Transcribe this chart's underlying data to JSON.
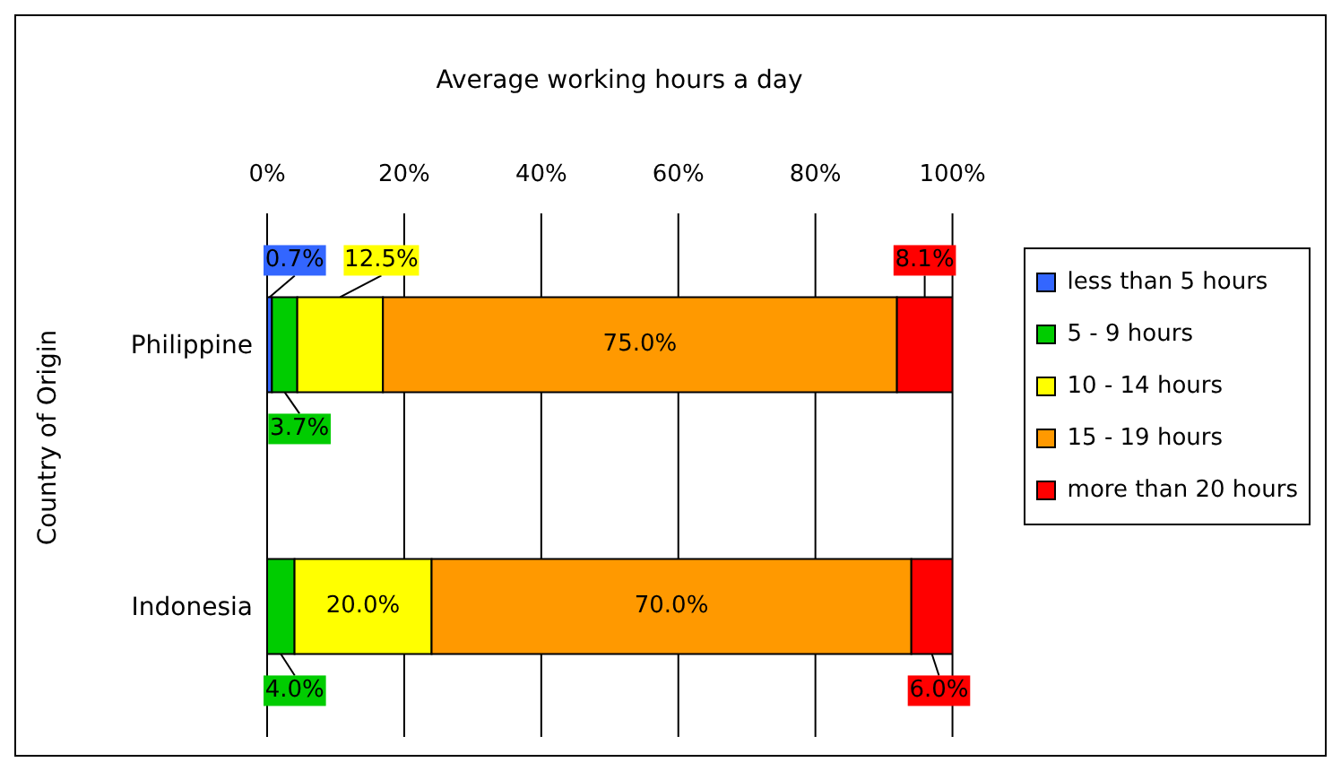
{
  "chart_data": {
    "type": "bar",
    "orientation": "horizontal",
    "stacked": true,
    "xlabel": "Average working hours a day",
    "ylabel": "Country of Origin",
    "categories": [
      "Philippine",
      "Indonesia"
    ],
    "series": [
      {
        "name": "less than 5 hours",
        "color": "#3366ff",
        "values": [
          0.7,
          null
        ],
        "value_labels": [
          "0.7%",
          null
        ]
      },
      {
        "name": "5 - 9 hours",
        "color": "#00cc00",
        "values": [
          3.7,
          4.0
        ],
        "value_labels": [
          "3.7%",
          "4.0%"
        ]
      },
      {
        "name": "10 - 14 hours",
        "color": "#ffff00",
        "values": [
          12.5,
          20.0
        ],
        "value_labels": [
          "12.5%",
          "20.0%"
        ]
      },
      {
        "name": "15 - 19 hours",
        "color": "#ff9900",
        "values": [
          75.0,
          70.0
        ],
        "value_labels": [
          "75.0%",
          "70.0%"
        ]
      },
      {
        "name": "more than 20 hours",
        "color": "#ff0000",
        "values": [
          8.1,
          6.0
        ],
        "value_labels": [
          "8.1%",
          "6.0%"
        ]
      }
    ],
    "xlim": [
      0,
      100
    ],
    "xticks": [
      {
        "value": 0,
        "label": "0%"
      },
      {
        "value": 20,
        "label": "20%"
      },
      {
        "value": 40,
        "label": "40%"
      },
      {
        "value": 60,
        "label": "60%"
      },
      {
        "value": 80,
        "label": "80%"
      },
      {
        "value": 100,
        "label": "100%"
      }
    ],
    "grid": "x",
    "legend": "right"
  }
}
